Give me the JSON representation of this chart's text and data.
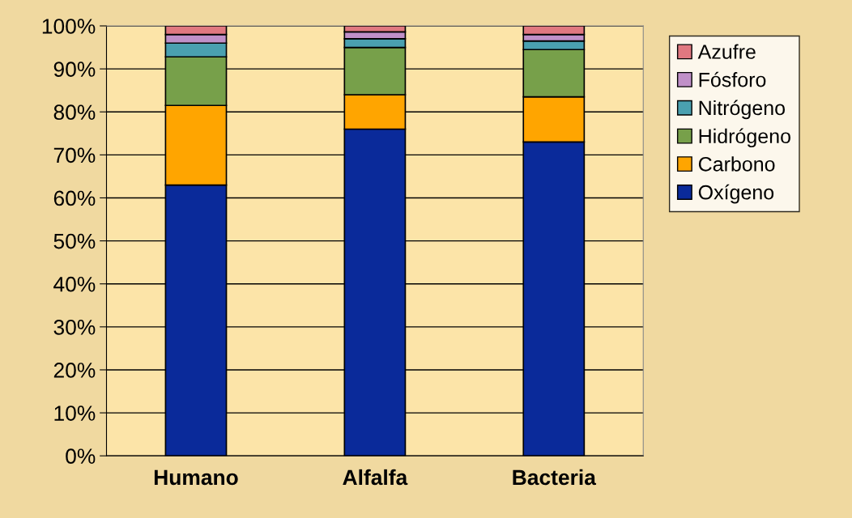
{
  "chart_data": {
    "type": "bar",
    "stacked": true,
    "categories": [
      "Humano",
      "Alfalfa",
      "Bacteria"
    ],
    "series": [
      {
        "name": "Oxígeno",
        "color": "#0a2a9a",
        "values": [
          63,
          76,
          73
        ]
      },
      {
        "name": "Carbono",
        "color": "#ffa500",
        "values": [
          18.5,
          8,
          10.5
        ]
      },
      {
        "name": "Hidrógeno",
        "color": "#77a04a",
        "values": [
          11.3,
          11,
          11
        ]
      },
      {
        "name": "Nitrógeno",
        "color": "#4aa0b0",
        "values": [
          3.2,
          2,
          2
        ]
      },
      {
        "name": "Fósforo",
        "color": "#c090c8",
        "values": [
          2,
          1.6,
          1.5
        ]
      },
      {
        "name": "Azufre",
        "color": "#e07880",
        "values": [
          2,
          1.4,
          2
        ]
      }
    ],
    "ylim": [
      0,
      100
    ],
    "yticks": [
      {
        "value": 0,
        "label": "0%"
      },
      {
        "value": 10,
        "label": "10%"
      },
      {
        "value": 20,
        "label": "20%"
      },
      {
        "value": 30,
        "label": "30%"
      },
      {
        "value": 40,
        "label": "40%"
      },
      {
        "value": 50,
        "label": "50%"
      },
      {
        "value": 60,
        "label": "60%"
      },
      {
        "value": 70,
        "label": "70%"
      },
      {
        "value": 80,
        "label": "80%"
      },
      {
        "value": 90,
        "label": "90%"
      },
      {
        "value": 100,
        "label": "100%"
      }
    ],
    "grid": "y",
    "legend": "right"
  }
}
